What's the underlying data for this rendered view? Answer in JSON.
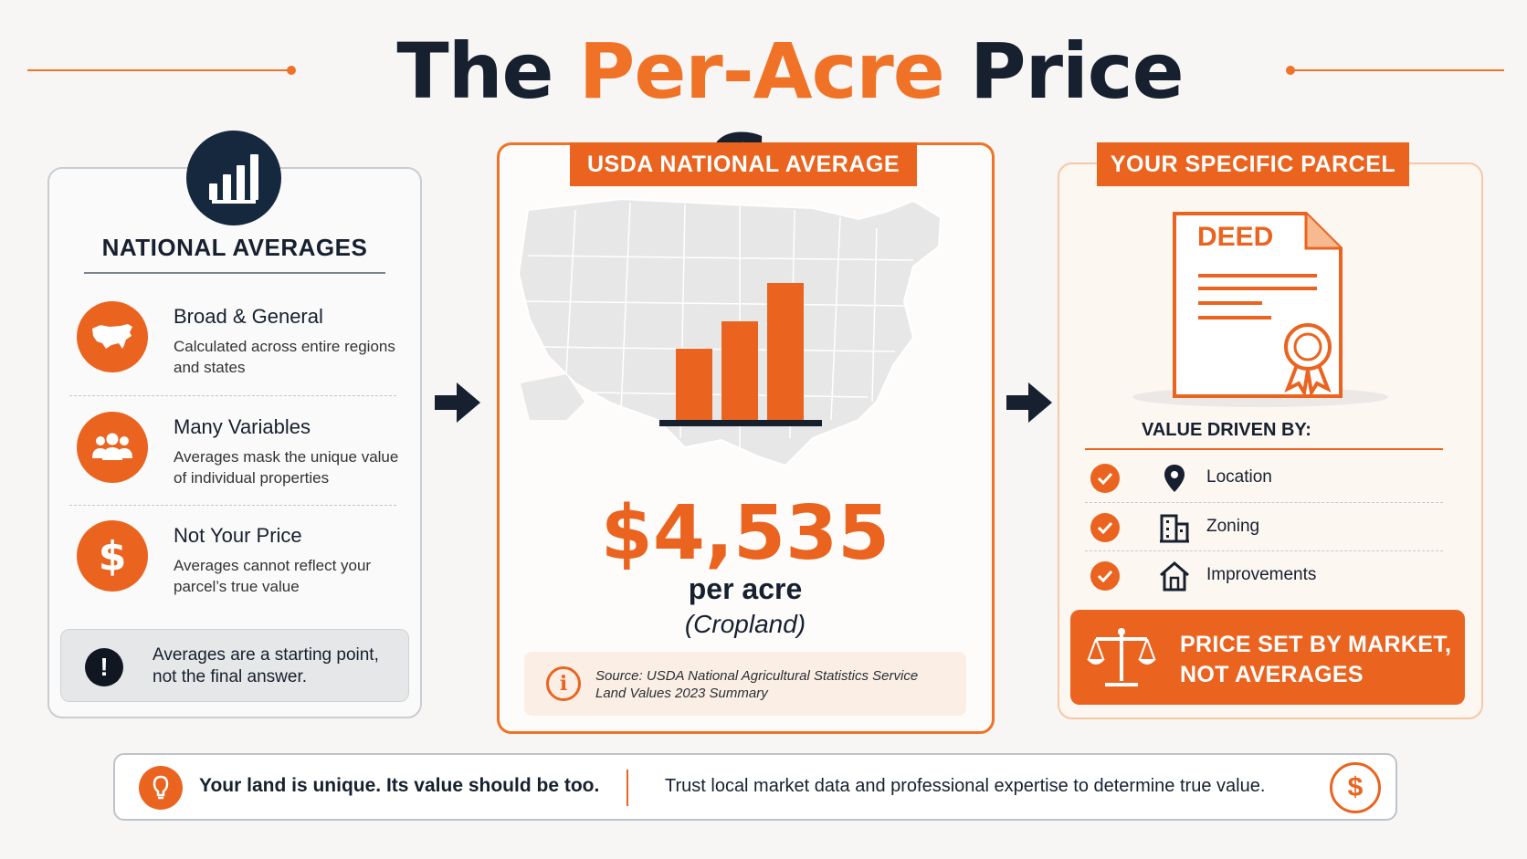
{
  "title": {
    "part1": "The ",
    "accent": "Per-Acre",
    "part2": " Price Gap"
  },
  "left_panel": {
    "heading": "NATIONAL AVERAGES",
    "icon": "bar-chart-icon",
    "features": [
      {
        "icon": "us-map-icon",
        "title": "Broad & General",
        "desc": "Calculated across entire regions and states"
      },
      {
        "icon": "people-icon",
        "title": "Many Variables",
        "desc": "Averages mask the unique value of individual properties"
      },
      {
        "icon": "dollar-icon",
        "title": "Not Your Price",
        "desc": "Averages cannot reflect your parcel’s true value"
      }
    ],
    "note": {
      "icon": "exclamation-icon",
      "line1": "Averages are a starting point,",
      "line2": "not the final answer."
    }
  },
  "middle_panel": {
    "label": "USDA NATIONAL AVERAGE",
    "price": "$4,535",
    "unit": "per acre",
    "subtitle": "(Cropland)",
    "source_line1": "Source: USDA National Agricultural Statistics Service",
    "source_line2": "Land Values 2023 Summary",
    "icon_bars": [
      0.52,
      0.72,
      1.0
    ]
  },
  "right_panel": {
    "label": "YOUR SPECIFIC PARCEL",
    "deed_title": "DEED",
    "value_heading": "VALUE DRIVEN BY:",
    "drivers": [
      {
        "icon": "location-pin-icon",
        "label": "Location"
      },
      {
        "icon": "building-icon",
        "label": "Zoning"
      },
      {
        "icon": "house-icon",
        "label": "Improvements"
      }
    ],
    "callout_line1": "PRICE SET BY MARKET,",
    "callout_line2": "NOT AVERAGES"
  },
  "banner": {
    "bold": "Your land is unique. Its value should be too.",
    "text": "Trust local market data and professional expertise to determine true value.",
    "coin": "$"
  },
  "colors": {
    "accent": "#ea6420",
    "navy": "#16283d",
    "text": "#16202e"
  }
}
